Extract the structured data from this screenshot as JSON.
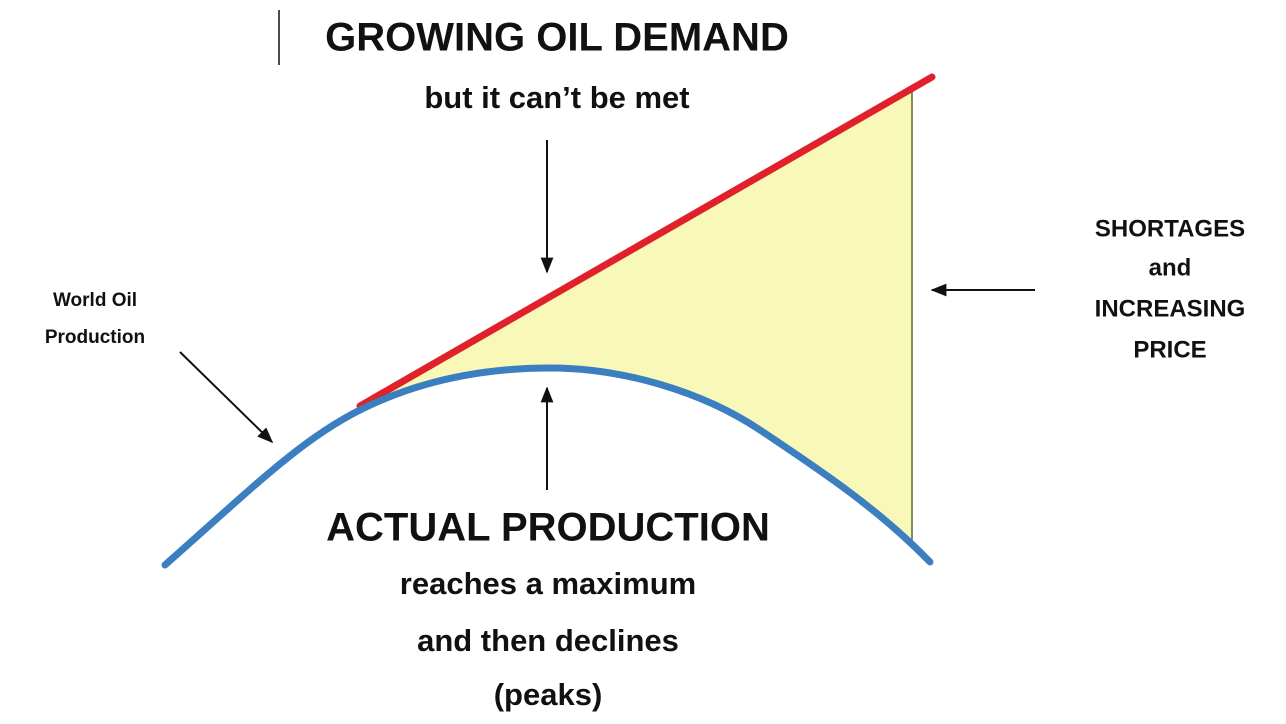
{
  "demand": {
    "title": "GROWING OIL DEMAND",
    "subtitle": "but it can’t be met"
  },
  "production": {
    "title": "ACTUAL PRODUCTION",
    "lines": [
      "reaches a maximum",
      "and then declines",
      "(peaks)"
    ]
  },
  "world_label": {
    "lines": [
      "World Oil",
      "Production"
    ]
  },
  "shortage": {
    "lines": [
      "SHORTAGES",
      "and",
      "INCREASING",
      "PRICE"
    ]
  }
}
